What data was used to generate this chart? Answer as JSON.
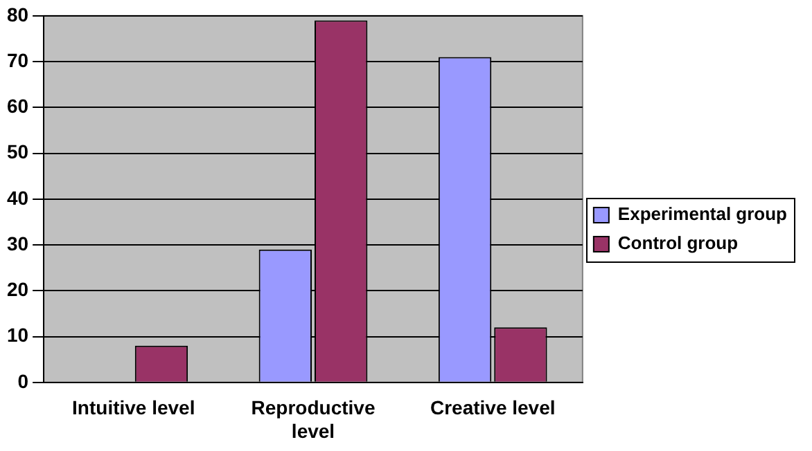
{
  "chart_data": {
    "type": "bar",
    "categories": [
      "Intuitive level",
      "Reproductive level",
      "Creative level"
    ],
    "series": [
      {
        "name": "Experimental group",
        "color": "#9999ff",
        "values": [
          0,
          29,
          71
        ]
      },
      {
        "name": "Control group",
        "color": "#993366",
        "values": [
          8,
          79,
          12
        ]
      }
    ],
    "ylim": [
      0,
      80
    ],
    "yticks": [
      0,
      10,
      20,
      30,
      40,
      50,
      60,
      70,
      80
    ],
    "grid": "y",
    "legend": "right"
  }
}
